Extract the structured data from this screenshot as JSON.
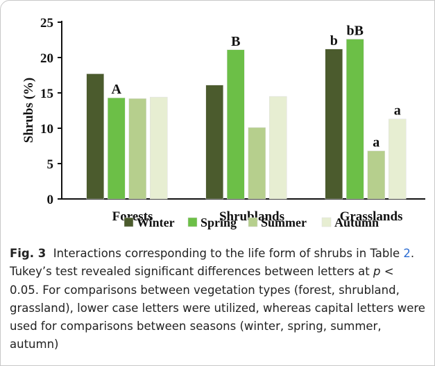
{
  "chart_data": {
    "type": "bar",
    "ylabel": "Shrubs (%)",
    "categories": [
      "Forests",
      "Shrublands",
      "Grasslands"
    ],
    "series": [
      {
        "name": "Winter",
        "color": "#4b5b2d",
        "values": [
          17.7,
          16.1,
          21.2
        ],
        "letters": [
          null,
          null,
          "b"
        ]
      },
      {
        "name": "Spring",
        "color": "#6cbf47",
        "values": [
          14.3,
          21.1,
          22.6
        ],
        "letters": [
          "A",
          "B",
          "bB"
        ]
      },
      {
        "name": "Summer",
        "color": "#b6cf8d",
        "values": [
          14.2,
          10.1,
          6.8
        ],
        "letters": [
          null,
          null,
          "a"
        ]
      },
      {
        "name": "Autumn",
        "color": "#e7eed2",
        "values": [
          14.4,
          14.5,
          11.3
        ],
        "letters": [
          null,
          null,
          "a"
        ]
      }
    ],
    "ylim": [
      0,
      25
    ],
    "yticks": [
      0,
      5,
      10,
      15,
      20,
      25
    ],
    "legend": "bottom"
  },
  "caption": {
    "label": "Fig. 3",
    "parts": [
      "Interactions corresponding to the life form of shrubs in Table ",
      "2",
      ". Tukey’s test revealed significant differences between letters at ",
      "p",
      " < 0.05. For comparisons between vegetation types (forest, shrubland, grassland), lower case letters were utilized, whereas capital letters were used for comparisons between seasons (winter, spring, summer, autumn)"
    ]
  }
}
